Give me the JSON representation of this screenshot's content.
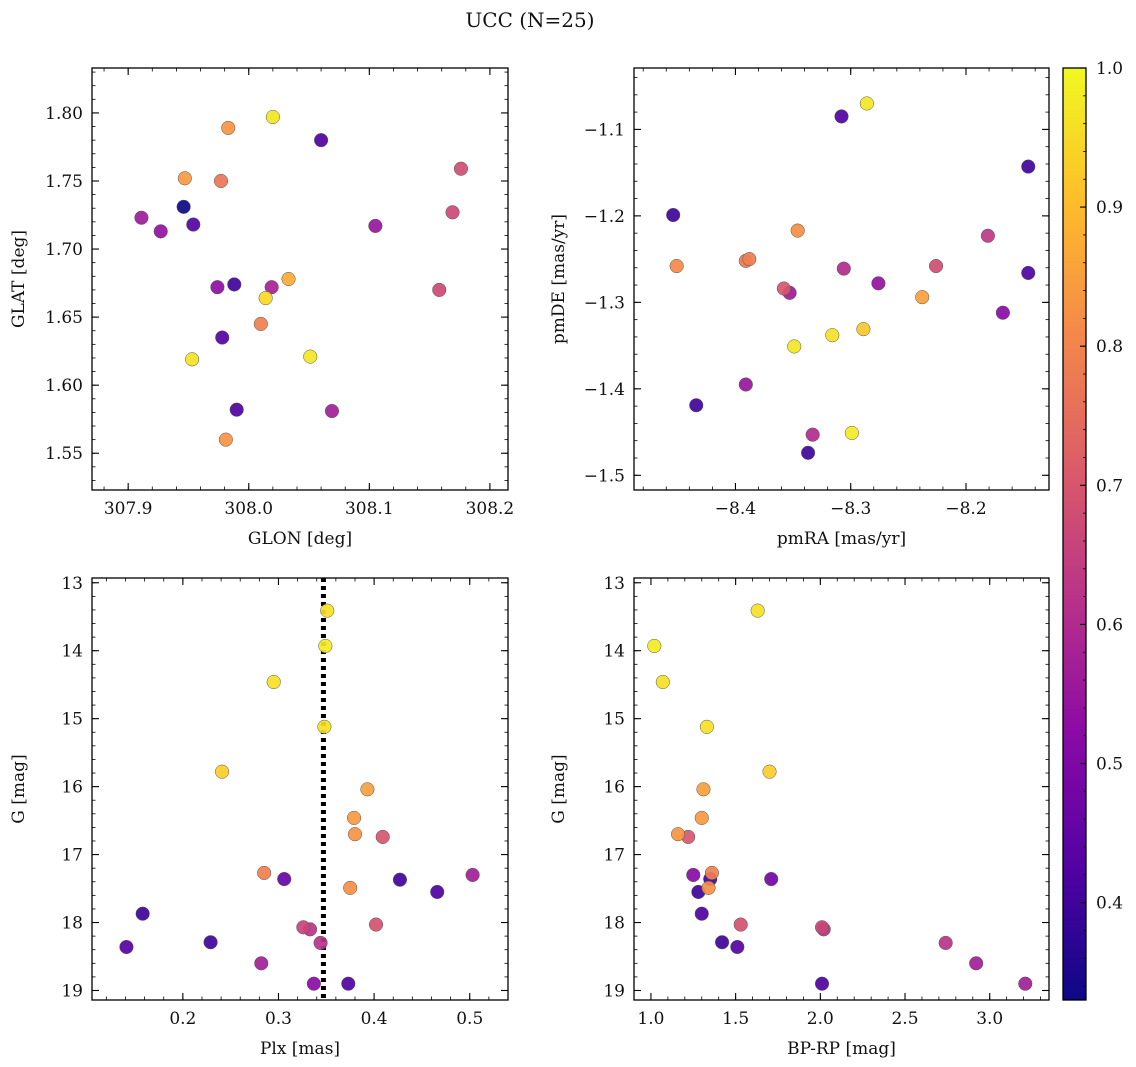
{
  "figure": {
    "title": "UCC (N=25)"
  },
  "colorbar": {
    "range": [
      0.33,
      1.0
    ],
    "ticks": [
      0.4,
      0.5,
      0.6,
      0.7,
      0.8,
      0.9,
      1.0
    ],
    "tick_labels": [
      "0.4",
      "0.5",
      "0.6",
      "0.7",
      "0.8",
      "0.9",
      "1.0"
    ],
    "colormap": "plasma",
    "color_stops": [
      "#0d0887",
      "#5302a3",
      "#8b0aa5",
      "#b83289",
      "#db5c68",
      "#f48849",
      "#febd2a",
      "#f0f921"
    ]
  },
  "chart_data": [
    {
      "id": "glon-glat",
      "type": "scatter",
      "xlabel": "GLON [deg]",
      "ylabel": "GLAT [deg]",
      "xlim": [
        307.87,
        308.215
      ],
      "ylim": [
        1.523,
        1.833
      ],
      "invert_y": false,
      "xticks": [
        307.9,
        308.0,
        308.1,
        308.2
      ],
      "xtick_labels": [
        "307.9",
        "308.0",
        "308.1",
        "308.2"
      ],
      "yticks": [
        1.55,
        1.6,
        1.65,
        1.7,
        1.75,
        1.8
      ],
      "ytick_labels": [
        "1.55",
        "1.60",
        "1.65",
        "1.70",
        "1.75",
        "1.80"
      ],
      "x_minor_step": 0.02,
      "y_minor_step": 0.01,
      "points": [
        {
          "x": 308.02,
          "y": 1.797,
          "c": 0.97
        },
        {
          "x": 307.983,
          "y": 1.789,
          "c": 0.83
        },
        {
          "x": 308.06,
          "y": 1.78,
          "c": 0.42
        },
        {
          "x": 308.176,
          "y": 1.759,
          "c": 0.68
        },
        {
          "x": 307.947,
          "y": 1.752,
          "c": 0.84
        },
        {
          "x": 307.977,
          "y": 1.75,
          "c": 0.77
        },
        {
          "x": 307.946,
          "y": 1.731,
          "c": 0.33
        },
        {
          "x": 308.169,
          "y": 1.727,
          "c": 0.67
        },
        {
          "x": 307.911,
          "y": 1.723,
          "c": 0.56
        },
        {
          "x": 307.954,
          "y": 1.718,
          "c": 0.43
        },
        {
          "x": 308.105,
          "y": 1.717,
          "c": 0.55
        },
        {
          "x": 307.927,
          "y": 1.713,
          "c": 0.54
        },
        {
          "x": 308.033,
          "y": 1.678,
          "c": 0.87
        },
        {
          "x": 307.988,
          "y": 1.674,
          "c": 0.4
        },
        {
          "x": 307.974,
          "y": 1.672,
          "c": 0.53
        },
        {
          "x": 308.019,
          "y": 1.672,
          "c": 0.58
        },
        {
          "x": 308.158,
          "y": 1.67,
          "c": 0.67
        },
        {
          "x": 308.014,
          "y": 1.664,
          "c": 0.95
        },
        {
          "x": 308.01,
          "y": 1.645,
          "c": 0.79
        },
        {
          "x": 307.978,
          "y": 1.635,
          "c": 0.43
        },
        {
          "x": 308.051,
          "y": 1.621,
          "c": 0.97
        },
        {
          "x": 307.953,
          "y": 1.619,
          "c": 0.96
        },
        {
          "x": 307.99,
          "y": 1.582,
          "c": 0.42
        },
        {
          "x": 308.069,
          "y": 1.581,
          "c": 0.57
        },
        {
          "x": 307.981,
          "y": 1.56,
          "c": 0.83
        }
      ]
    },
    {
      "id": "pmra-pmde",
      "type": "scatter",
      "xlabel": "pmRA [mas/yr]",
      "ylabel": "pmDE [mas/yr]",
      "xlim": [
        -8.488,
        -8.128
      ],
      "ylim": [
        -1.517,
        -1.029
      ],
      "invert_y": false,
      "xticks": [
        -8.4,
        -8.3,
        -8.2
      ],
      "xtick_labels": [
        "−8.4",
        "−8.3",
        "−8.2"
      ],
      "yticks": [
        -1.5,
        -1.4,
        -1.3,
        -1.2,
        -1.1
      ],
      "ytick_labels": [
        "−1.5",
        "−1.4",
        "−1.3",
        "−1.2",
        "−1.1"
      ],
      "x_minor_step": 0.02,
      "y_minor_step": 0.02,
      "points": [
        {
          "x": -8.286,
          "y": -1.07,
          "c": 0.97
        },
        {
          "x": -8.308,
          "y": -1.085,
          "c": 0.42
        },
        {
          "x": -8.146,
          "y": -1.143,
          "c": 0.4
        },
        {
          "x": -8.454,
          "y": -1.199,
          "c": 0.4
        },
        {
          "x": -8.346,
          "y": -1.217,
          "c": 0.82
        },
        {
          "x": -8.181,
          "y": -1.223,
          "c": 0.63
        },
        {
          "x": -8.451,
          "y": -1.258,
          "c": 0.81
        },
        {
          "x": -8.388,
          "y": -1.25,
          "c": 0.79
        },
        {
          "x": -8.391,
          "y": -1.252,
          "c": 0.78
        },
        {
          "x": -8.226,
          "y": -1.258,
          "c": 0.68
        },
        {
          "x": -8.306,
          "y": -1.261,
          "c": 0.6
        },
        {
          "x": -8.146,
          "y": -1.266,
          "c": 0.42
        },
        {
          "x": -8.276,
          "y": -1.278,
          "c": 0.54
        },
        {
          "x": -8.358,
          "y": -1.284,
          "c": 0.7
        },
        {
          "x": -8.353,
          "y": -1.289,
          "c": 0.56
        },
        {
          "x": -8.238,
          "y": -1.294,
          "c": 0.85
        },
        {
          "x": -8.168,
          "y": -1.312,
          "c": 0.52
        },
        {
          "x": -8.289,
          "y": -1.331,
          "c": 0.92
        },
        {
          "x": -8.316,
          "y": -1.338,
          "c": 0.96
        },
        {
          "x": -8.349,
          "y": -1.351,
          "c": 0.97
        },
        {
          "x": -8.391,
          "y": -1.395,
          "c": 0.55
        },
        {
          "x": -8.434,
          "y": -1.419,
          "c": 0.4
        },
        {
          "x": -8.299,
          "y": -1.451,
          "c": 0.98
        },
        {
          "x": -8.333,
          "y": -1.453,
          "c": 0.6
        },
        {
          "x": -8.337,
          "y": -1.474,
          "c": 0.4
        }
      ]
    },
    {
      "id": "plx-g",
      "type": "scatter",
      "xlabel": "Plx [mas]",
      "ylabel": "G [mag]",
      "xlim": [
        0.105,
        0.54
      ],
      "ylim": [
        12.93,
        19.14
      ],
      "invert_y": true,
      "xticks": [
        0.2,
        0.3,
        0.4,
        0.5
      ],
      "xtick_labels": [
        "0.2",
        "0.3",
        "0.4",
        "0.5"
      ],
      "yticks": [
        13,
        14,
        15,
        16,
        17,
        18,
        19
      ],
      "ytick_labels": [
        "13",
        "14",
        "15",
        "16",
        "17",
        "18",
        "19"
      ],
      "x_minor_step": 0.02,
      "y_minor_step": 0.2,
      "vline": 0.347,
      "points": [
        {
          "x": 0.351,
          "y": 13.41,
          "c": 0.96
        },
        {
          "x": 0.349,
          "y": 13.93,
          "c": 0.98
        },
        {
          "x": 0.295,
          "y": 14.46,
          "c": 0.96
        },
        {
          "x": 0.348,
          "y": 15.12,
          "c": 0.96
        },
        {
          "x": 0.241,
          "y": 15.78,
          "c": 0.93
        },
        {
          "x": 0.393,
          "y": 16.04,
          "c": 0.85
        },
        {
          "x": 0.379,
          "y": 16.46,
          "c": 0.84
        },
        {
          "x": 0.38,
          "y": 16.7,
          "c": 0.83
        },
        {
          "x": 0.409,
          "y": 16.74,
          "c": 0.7
        },
        {
          "x": 0.285,
          "y": 17.27,
          "c": 0.79
        },
        {
          "x": 0.306,
          "y": 17.36,
          "c": 0.46
        },
        {
          "x": 0.427,
          "y": 17.37,
          "c": 0.4
        },
        {
          "x": 0.503,
          "y": 17.3,
          "c": 0.57
        },
        {
          "x": 0.375,
          "y": 17.49,
          "c": 0.82
        },
        {
          "x": 0.466,
          "y": 17.55,
          "c": 0.42
        },
        {
          "x": 0.158,
          "y": 17.87,
          "c": 0.4
        },
        {
          "x": 0.402,
          "y": 18.03,
          "c": 0.69
        },
        {
          "x": 0.326,
          "y": 18.07,
          "c": 0.66
        },
        {
          "x": 0.333,
          "y": 18.1,
          "c": 0.62
        },
        {
          "x": 0.229,
          "y": 18.29,
          "c": 0.4
        },
        {
          "x": 0.344,
          "y": 18.3,
          "c": 0.62
        },
        {
          "x": 0.141,
          "y": 18.36,
          "c": 0.43
        },
        {
          "x": 0.282,
          "y": 18.6,
          "c": 0.57
        },
        {
          "x": 0.337,
          "y": 18.9,
          "c": 0.52
        },
        {
          "x": 0.373,
          "y": 18.9,
          "c": 0.42
        }
      ]
    },
    {
      "id": "bprp-g",
      "type": "scatter",
      "xlabel": "BP-RP [mag]",
      "ylabel": "G [mag]",
      "xlim": [
        0.9,
        3.35
      ],
      "ylim": [
        12.93,
        19.14
      ],
      "invert_y": true,
      "xticks": [
        1.0,
        1.5,
        2.0,
        2.5,
        3.0
      ],
      "xtick_labels": [
        "1.0",
        "1.5",
        "2.0",
        "2.5",
        "3.0"
      ],
      "yticks": [
        13,
        14,
        15,
        16,
        17,
        18,
        19
      ],
      "ytick_labels": [
        "13",
        "14",
        "15",
        "16",
        "17",
        "18",
        "19"
      ],
      "x_minor_step": 0.1,
      "y_minor_step": 0.2,
      "points": [
        {
          "x": 1.63,
          "y": 13.41,
          "c": 0.96
        },
        {
          "x": 1.02,
          "y": 13.93,
          "c": 0.98
        },
        {
          "x": 1.07,
          "y": 14.46,
          "c": 0.96
        },
        {
          "x": 1.33,
          "y": 15.12,
          "c": 0.96
        },
        {
          "x": 1.7,
          "y": 15.78,
          "c": 0.93
        },
        {
          "x": 1.31,
          "y": 16.04,
          "c": 0.85
        },
        {
          "x": 1.3,
          "y": 16.46,
          "c": 0.84
        },
        {
          "x": 1.16,
          "y": 16.7,
          "c": 0.83
        },
        {
          "x": 1.22,
          "y": 16.74,
          "c": 0.7
        },
        {
          "x": 1.36,
          "y": 17.27,
          "c": 0.79
        },
        {
          "x": 1.25,
          "y": 17.3,
          "c": 0.52
        },
        {
          "x": 1.35,
          "y": 17.36,
          "c": 0.4
        },
        {
          "x": 1.71,
          "y": 17.36,
          "c": 0.48
        },
        {
          "x": 1.34,
          "y": 17.49,
          "c": 0.82
        },
        {
          "x": 1.28,
          "y": 17.55,
          "c": 0.4
        },
        {
          "x": 1.3,
          "y": 17.87,
          "c": 0.42
        },
        {
          "x": 1.53,
          "y": 18.03,
          "c": 0.69
        },
        {
          "x": 2.01,
          "y": 18.07,
          "c": 0.66
        },
        {
          "x": 2.02,
          "y": 18.1,
          "c": 0.62
        },
        {
          "x": 1.42,
          "y": 18.29,
          "c": 0.4
        },
        {
          "x": 2.74,
          "y": 18.3,
          "c": 0.62
        },
        {
          "x": 1.51,
          "y": 18.36,
          "c": 0.43
        },
        {
          "x": 2.92,
          "y": 18.6,
          "c": 0.57
        },
        {
          "x": 2.01,
          "y": 18.9,
          "c": 0.42
        },
        {
          "x": 3.21,
          "y": 18.9,
          "c": 0.57
        }
      ]
    }
  ]
}
